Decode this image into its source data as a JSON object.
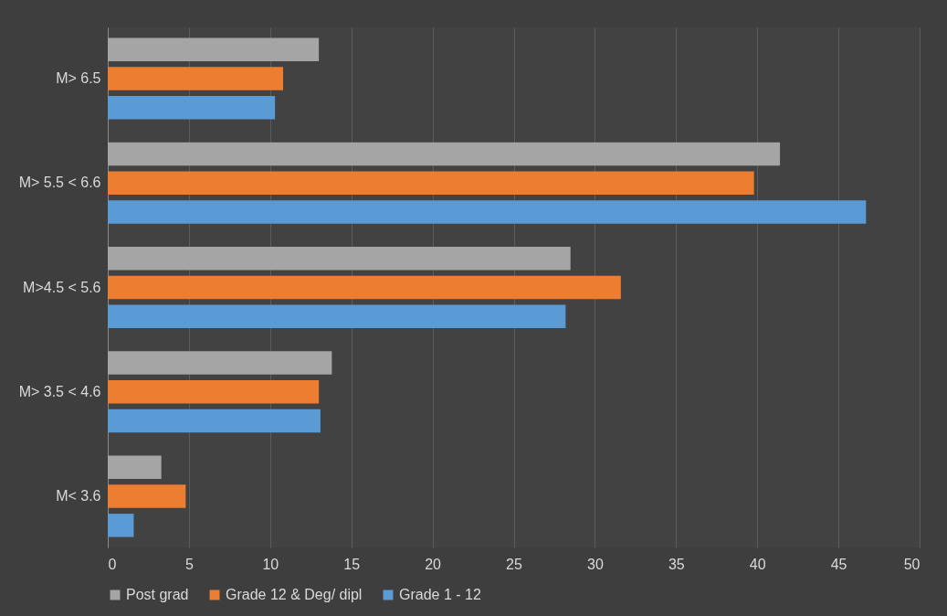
{
  "chart_data": {
    "type": "bar",
    "orientation": "horizontal",
    "categories": [
      "M> 6.5",
      "M> 5.5 < 6.6",
      "M>4.5 < 5.6",
      "M> 3.5 < 4.6",
      "M< 3.6"
    ],
    "series": [
      {
        "name": "Post grad",
        "color": "#a5a5a5",
        "values": [
          13.0,
          41.4,
          28.5,
          13.8,
          3.3
        ]
      },
      {
        "name": "Grade 12 & Deg/ dipl",
        "color": "#ed7d31",
        "values": [
          10.8,
          39.8,
          31.6,
          13.0,
          4.8
        ]
      },
      {
        "name": "Grade 1 - 12",
        "color": "#5b9bd5",
        "values": [
          10.3,
          46.7,
          28.2,
          13.1,
          1.6
        ]
      }
    ],
    "xlim": [
      0,
      50
    ],
    "xticks": [
      0,
      5,
      10,
      15,
      20,
      25,
      30,
      35,
      40,
      45,
      50
    ],
    "grid": "x",
    "legend": "bottom"
  }
}
